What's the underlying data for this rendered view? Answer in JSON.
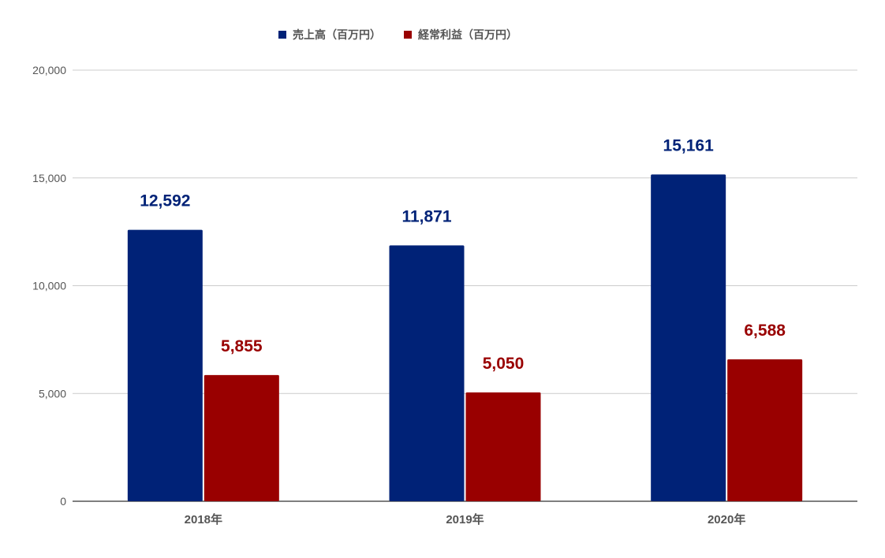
{
  "chart_data": {
    "type": "bar",
    "categories": [
      "2018年",
      "2019年",
      "2020年"
    ],
    "series": [
      {
        "name": "売上高（百万円）",
        "color": "#002277",
        "label_color": "#002277",
        "values": [
          12592,
          11871,
          15161
        ],
        "labels": [
          "12,592",
          "11,871",
          "15,161"
        ]
      },
      {
        "name": "経常利益（百万円）",
        "color": "#990000",
        "label_color": "#990000",
        "values": [
          5855,
          5050,
          6588
        ],
        "labels": [
          "5,855",
          "5,050",
          "6,588"
        ]
      }
    ],
    "ylim": [
      0,
      20000
    ],
    "yticks": [
      0,
      5000,
      10000,
      15000,
      20000
    ],
    "ytick_labels": [
      "0",
      "5,000",
      "10,000",
      "15,000",
      "20,000"
    ],
    "grid": true,
    "legend_position": "top-center",
    "gridline_color": "#cccccc",
    "axis_text_color": "#555555"
  }
}
